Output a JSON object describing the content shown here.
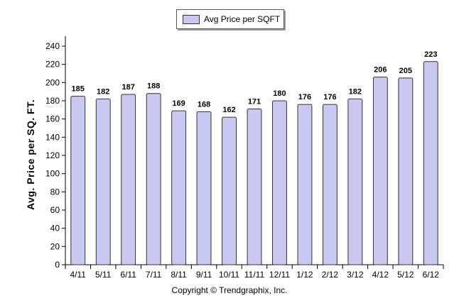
{
  "chart_data": {
    "type": "bar",
    "categories": [
      "4/11",
      "5/11",
      "6/11",
      "7/11",
      "8/11",
      "9/11",
      "10/11",
      "11/11",
      "12/11",
      "1/12",
      "2/12",
      "3/12",
      "4/12",
      "5/12",
      "6/12"
    ],
    "series": [
      {
        "name": "Avg Price per SQFT",
        "values": [
          185,
          182,
          187,
          188,
          169,
          168,
          162,
          171,
          180,
          176,
          176,
          182,
          206,
          205,
          223
        ]
      }
    ],
    "data_labels": [
      "185",
      "182",
      "187",
      "188",
      "169",
      "168",
      "162",
      "171",
      "180",
      "176",
      "176",
      "182",
      "206",
      "205",
      "223"
    ],
    "title": "",
    "xlabel": "",
    "ylabel": "Avg. Price per SQ. FT.",
    "ylim": [
      0,
      240
    ],
    "yticks": [
      0,
      20,
      40,
      60,
      80,
      100,
      120,
      140,
      160,
      180,
      200,
      220,
      240
    ],
    "ytick_labels": [
      "0",
      "20",
      "40",
      "60",
      "80",
      "100",
      "120",
      "140",
      "160",
      "180",
      "200",
      "220",
      "240"
    ],
    "grid": false,
    "legend_position": "top-center",
    "bar_color": "#c8c8f0",
    "bar_stroke": "#333333"
  },
  "footer": {
    "copyright": "Copyright © Trendgraphix, Inc."
  }
}
